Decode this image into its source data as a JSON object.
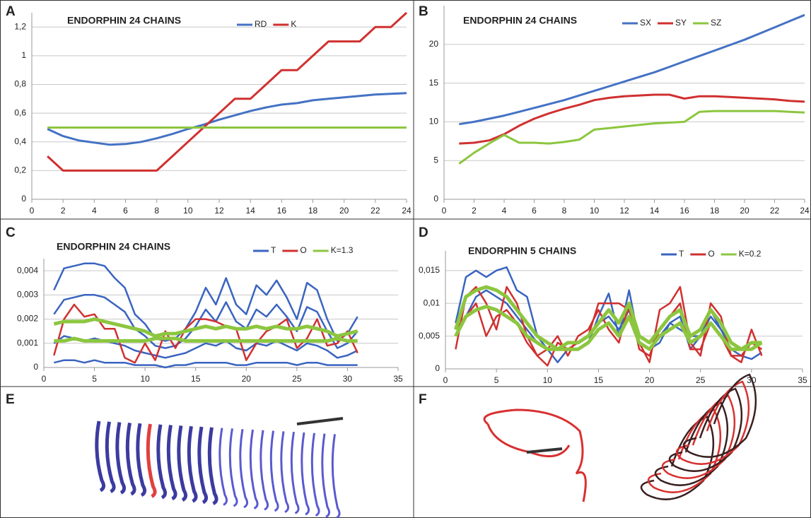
{
  "chart_data": [
    {
      "type": "line",
      "panel": "A",
      "title": "ENDORPHIN  24 CHAINS",
      "x": [
        1,
        2,
        3,
        4,
        5,
        6,
        7,
        8,
        9,
        10,
        11,
        12,
        13,
        14,
        15,
        16,
        17,
        18,
        19,
        20,
        21,
        22,
        23,
        24
      ],
      "xlim": [
        0,
        24
      ],
      "xticks": [
        0,
        2,
        4,
        6,
        8,
        10,
        12,
        14,
        16,
        18,
        20,
        22,
        24
      ],
      "ylim": [
        0,
        1.3
      ],
      "yticks": [
        0,
        {
          "value": 0.2,
          "label": "0,2"
        },
        {
          "value": 0.4,
          "label": "0,4"
        },
        {
          "value": 0.6,
          "label": "0,6"
        },
        {
          "value": 0.8,
          "label": "0,8"
        },
        1,
        {
          "value": 1.2,
          "label": "1,2"
        }
      ],
      "grid": true,
      "series": [
        {
          "name": "RD",
          "color": "#4472c4",
          "values": [
            0.49,
            0.44,
            0.41,
            0.395,
            0.38,
            0.385,
            0.4,
            0.425,
            0.455,
            0.49,
            0.52,
            0.555,
            0.585,
            0.615,
            0.64,
            0.66,
            0.67,
            0.69,
            0.7,
            0.71,
            0.72,
            0.73,
            0.735,
            0.74
          ]
        },
        {
          "name": "K",
          "color": "#d03030",
          "values": [
            0.3,
            0.2,
            0.2,
            0.2,
            0.2,
            0.2,
            0.2,
            0.2,
            0.3,
            0.4,
            0.5,
            0.6,
            0.7,
            0.7,
            0.8,
            0.9,
            0.9,
            1.0,
            1.1,
            1.1,
            1.1,
            1.2,
            1.2,
            1.3
          ]
        },
        {
          "color": "#8cc63f",
          "values": [
            0.5,
            0.5,
            0.5,
            0.5,
            0.5,
            0.5,
            0.5,
            0.5,
            0.5,
            0.5,
            0.5,
            0.5,
            0.5,
            0.5,
            0.5,
            0.5,
            0.5,
            0.5,
            0.5,
            0.5,
            0.5,
            0.5,
            0.5,
            0.5
          ]
        }
      ]
    },
    {
      "type": "line",
      "panel": "B",
      "title": "ENDORPHIN  24 CHAINS",
      "x": [
        1,
        2,
        3,
        4,
        5,
        6,
        7,
        8,
        9,
        10,
        11,
        12,
        13,
        14,
        15,
        16,
        17,
        18,
        19,
        20,
        21,
        22,
        23,
        24
      ],
      "xlim": [
        0,
        24
      ],
      "xticks": [
        0,
        2,
        4,
        6,
        8,
        10,
        12,
        14,
        16,
        18,
        20,
        22,
        24
      ],
      "ylim": [
        0,
        25
      ],
      "yticks": [
        0,
        5,
        10,
        15,
        20
      ],
      "grid": true,
      "series": [
        {
          "name": "SX",
          "color": "#4472c4",
          "values": [
            9.7,
            10.0,
            10.4,
            10.8,
            11.3,
            11.8,
            12.3,
            12.8,
            13.4,
            14.0,
            14.6,
            15.2,
            15.8,
            16.4,
            17.1,
            17.8,
            18.5,
            19.2,
            19.9,
            20.6,
            21.4,
            22.2,
            23.0,
            23.8
          ]
        },
        {
          "name": "SY",
          "color": "#d03030",
          "values": [
            7.2,
            7.3,
            7.6,
            8.4,
            9.5,
            10.4,
            11.1,
            11.7,
            12.2,
            12.8,
            13.1,
            13.3,
            13.4,
            13.5,
            13.5,
            13.0,
            13.3,
            13.3,
            13.2,
            13.1,
            13.0,
            12.9,
            12.7,
            12.6
          ]
        },
        {
          "name": "SZ",
          "color": "#8cc63f",
          "values": [
            4.6,
            6.0,
            7.2,
            8.3,
            7.3,
            7.3,
            7.2,
            7.4,
            7.7,
            9.0,
            9.2,
            9.4,
            9.6,
            9.8,
            9.9,
            10.0,
            11.3,
            11.4,
            11.4,
            11.4,
            11.4,
            11.4,
            11.3,
            11.2
          ]
        }
      ]
    },
    {
      "type": "multiline",
      "panel": "C",
      "title": "ENDORPHIN  24 CHAINS",
      "x": [
        1,
        2,
        3,
        4,
        5,
        6,
        7,
        8,
        9,
        10,
        11,
        12,
        13,
        14,
        15,
        16,
        17,
        18,
        19,
        20,
        21,
        22,
        23,
        24,
        25,
        26,
        27,
        28,
        29,
        30,
        31
      ],
      "xlim": [
        0,
        35
      ],
      "xticks": [
        0,
        5,
        10,
        15,
        20,
        25,
        30,
        35
      ],
      "ylim": [
        0,
        0.0045
      ],
      "yticks": [
        0,
        {
          "value": 0.001,
          "label": "0,001"
        },
        {
          "value": 0.002,
          "label": "0,002"
        },
        {
          "value": 0.003,
          "label": "0,003"
        },
        {
          "value": 0.004,
          "label": "0,004"
        }
      ],
      "grid": true,
      "series": [
        {
          "name": "T",
          "color": "#3a64c0",
          "values": [
            [
              0.0032,
              0.0041,
              0.0042,
              0.0043,
              0.0043,
              0.0042,
              0.0037,
              0.0033,
              0.0022,
              0.0018,
              0.0012,
              0.0011,
              0.0012,
              0.0016,
              0.0023,
              0.0033,
              0.0026,
              0.0037,
              0.0026,
              0.0022,
              0.0034,
              0.003,
              0.0036,
              0.0029,
              0.002,
              0.0035,
              0.0032,
              0.002,
              0.0011,
              0.0014,
              0.0021
            ],
            [
              0.0022,
              0.0028,
              0.0029,
              0.003,
              0.003,
              0.0029,
              0.0026,
              0.0023,
              0.0016,
              0.0013,
              0.0009,
              0.0008,
              0.0009,
              0.0012,
              0.0017,
              0.0024,
              0.0019,
              0.0027,
              0.0019,
              0.0016,
              0.0024,
              0.0021,
              0.0026,
              0.0021,
              0.0015,
              0.0025,
              0.0023,
              0.0015,
              0.0008,
              0.001,
              0.0015
            ],
            [
              0.001,
              0.0013,
              0.0012,
              0.0011,
              0.0012,
              0.0011,
              0.001,
              0.0009,
              0.0007,
              0.0006,
              0.0005,
              0.0004,
              0.0005,
              0.0006,
              0.0008,
              0.001,
              0.0009,
              0.0011,
              0.0008,
              0.0007,
              0.001,
              0.0009,
              0.0011,
              0.0009,
              0.0007,
              0.001,
              0.0009,
              0.0007,
              0.0004,
              0.0005,
              0.0007
            ],
            [
              0.0002,
              0.0003,
              0.0003,
              0.0002,
              0.0003,
              0.0002,
              0.0002,
              0.0002,
              0.0001,
              0.0001,
              0.0001,
              0,
              0.0001,
              0.0001,
              0.0002,
              0.0002,
              0.0002,
              0.0002,
              0.0001,
              0.0001,
              0.0002,
              0.0002,
              0.0002,
              0.0002,
              0.0001,
              0.0002,
              0.0002,
              0.0001,
              0.0001,
              0.0001,
              0.0001
            ]
          ]
        },
        {
          "name": "O",
          "color": "#d03030",
          "values": [
            [
              0.0005,
              0.002,
              0.0026,
              0.0021,
              0.0022,
              0.0016,
              0.0016,
              0.0004,
              0.0002,
              0.001,
              0.0003,
              0.0015,
              0.0008,
              0.0016,
              0.002,
              0.002,
              0.0019,
              0.0017,
              0.0016,
              0.0003,
              0.001,
              0.0015,
              0.0017,
              0.002,
              0.0008,
              0.0012,
              0.002,
              0.0009,
              0.001,
              0.0015,
              0.0006
            ]
          ]
        },
        {
          "name": "K=1.3",
          "color": "#8cc63f",
          "values": [
            [
              0.0018,
              0.0019,
              0.0019,
              0.0019,
              0.002,
              0.0019,
              0.0018,
              0.0017,
              0.0016,
              0.0015,
              0.0013,
              0.0014,
              0.0014,
              0.0015,
              0.0016,
              0.0017,
              0.0016,
              0.0017,
              0.0016,
              0.0016,
              0.0017,
              0.0016,
              0.0017,
              0.0016,
              0.0016,
              0.0017,
              0.0016,
              0.0015,
              0.0013,
              0.0014,
              0.0015
            ],
            [
              0.0011,
              0.0011,
              0.0012,
              0.0011,
              0.0011,
              0.0011,
              0.0011,
              0.0011,
              0.0011,
              0.0011,
              0.0012,
              0.0012,
              0.0012,
              0.0011,
              0.0011,
              0.0011,
              0.0011,
              0.0011,
              0.0011,
              0.0011,
              0.0011,
              0.0011,
              0.0011,
              0.0011,
              0.0011,
              0.0011,
              0.0011,
              0.0011,
              0.0012,
              0.0011,
              0.0011
            ]
          ]
        }
      ]
    },
    {
      "type": "multiline",
      "panel": "D",
      "title": "ENDORPHIN 5 CHAINS",
      "x": [
        1,
        2,
        3,
        4,
        5,
        6,
        7,
        8,
        9,
        10,
        11,
        12,
        13,
        14,
        15,
        16,
        17,
        18,
        19,
        20,
        21,
        22,
        23,
        24,
        25,
        26,
        27,
        28,
        29,
        30,
        31
      ],
      "xlim": [
        0,
        35
      ],
      "xticks": [
        0,
        5,
        10,
        15,
        20,
        25,
        30,
        35
      ],
      "ylim": [
        0,
        0.018
      ],
      "yticks": [
        0,
        {
          "value": 0.005,
          "label": "0,005"
        },
        {
          "value": 0.01,
          "label": "0,01"
        },
        {
          "value": 0.015,
          "label": "0,015"
        }
      ],
      "grid": true,
      "series": [
        {
          "name": "T",
          "color": "#3a64c0",
          "values": [
            [
              0.007,
              0.014,
              0.015,
              0.014,
              0.015,
              0.0155,
              0.012,
              0.011,
              0.005,
              0.003,
              0.001,
              0.003,
              0.003,
              0.004,
              0.008,
              0.0115,
              0.005,
              0.012,
              0.004,
              0.003,
              0.004,
              0.007,
              0.008,
              0.003,
              0.005,
              0.008,
              0.006,
              0.003,
              0.002,
              0.0015,
              0.0025
            ],
            [
              0.005,
              0.008,
              0.011,
              0.012,
              0.011,
              0.01,
              0.008,
              0.006,
              0.004,
              0.003,
              0.003,
              0.004,
              0.004,
              0.005,
              0.007,
              0.008,
              0.006,
              0.009,
              0.005,
              0.004,
              0.005,
              0.007,
              0.006,
              0.005,
              0.005,
              0.009,
              0.006,
              0.004,
              0.003,
              0.003,
              0.004
            ]
          ]
        },
        {
          "name": "O",
          "color": "#d03030",
          "values": [
            [
              0.003,
              0.011,
              0.0125,
              0.01,
              0.006,
              0.0125,
              0.01,
              0.005,
              0.002,
              0.0005,
              0.004,
              0.003,
              0.004,
              0.005,
              0.01,
              0.01,
              0.01,
              0.009,
              0.004,
              0.001,
              0.009,
              0.01,
              0.0125,
              0.004,
              0.002,
              0.01,
              0.008,
              0.002,
              0.001,
              0.006,
              0.002
            ],
            [
              0.006,
              0.008,
              0.01,
              0.005,
              0.008,
              0.009,
              0.007,
              0.004,
              0.002,
              0.003,
              0.005,
              0.002,
              0.005,
              0.006,
              0.009,
              0.006,
              0.004,
              0.01,
              0.003,
              0.002,
              0.006,
              0.008,
              0.01,
              0.003,
              0.003,
              0.007,
              0.005,
              0.002,
              0.002,
              0.004,
              0.003
            ]
          ]
        },
        {
          "name": "K=0.2",
          "color": "#8cc63f",
          "values": [
            [
              0.006,
              0.011,
              0.012,
              0.0125,
              0.012,
              0.011,
              0.009,
              0.007,
              0.005,
              0.004,
              0.003,
              0.004,
              0.004,
              0.005,
              0.007,
              0.009,
              0.007,
              0.01,
              0.005,
              0.004,
              0.006,
              0.008,
              0.009,
              0.005,
              0.006,
              0.009,
              0.007,
              0.004,
              0.003,
              0.004,
              0.004
            ],
            [
              0.005,
              0.008,
              0.009,
              0.0095,
              0.009,
              0.008,
              0.007,
              0.005,
              0.004,
              0.003,
              0.003,
              0.003,
              0.003,
              0.004,
              0.006,
              0.007,
              0.005,
              0.008,
              0.004,
              0.003,
              0.005,
              0.006,
              0.007,
              0.004,
              0.005,
              0.007,
              0.005,
              0.003,
              0.003,
              0.003,
              0.004
            ]
          ]
        }
      ]
    }
  ],
  "images": [
    {
      "panel": "E"
    },
    {
      "panel": "F"
    }
  ]
}
